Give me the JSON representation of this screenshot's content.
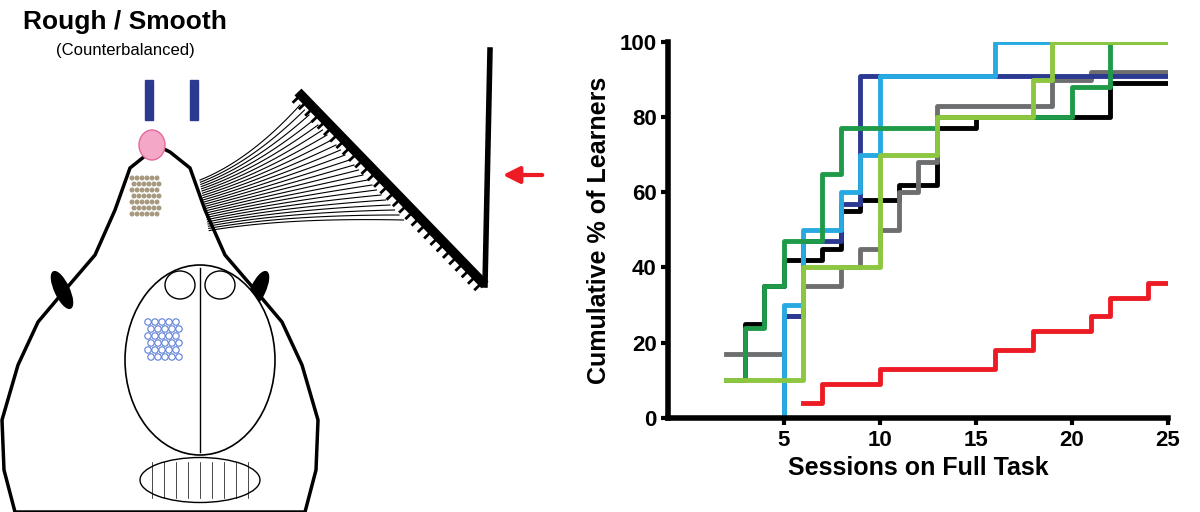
{
  "diagram": {
    "title": "Rough / Smooth",
    "subtitle": "(Counterbalanced)"
  },
  "chart_data": {
    "type": "step",
    "x_label": "Sessions on Full Task",
    "y_label": "Cumulative % of Learners",
    "xlim": [
      -1,
      25
    ],
    "xticks": [
      5,
      10,
      15,
      20,
      25
    ],
    "ylim": [
      0,
      100
    ],
    "yticks": [
      0,
      20,
      40,
      60,
      80,
      100
    ],
    "grid": false,
    "series": [
      {
        "color": "#000000",
        "x": [
          2,
          3,
          4,
          5,
          7,
          8,
          9,
          11,
          13,
          15,
          22,
          25
        ],
        "values": [
          10,
          25,
          35,
          42,
          45,
          55,
          58,
          62,
          77,
          80,
          89,
          89
        ]
      },
      {
        "color": "#6d6e70",
        "x": [
          2,
          5,
          6,
          8,
          9,
          10,
          11,
          12,
          13,
          19,
          21,
          25
        ],
        "values": [
          17,
          27,
          35,
          40,
          45,
          50,
          60,
          68,
          83,
          90,
          92,
          92
        ]
      },
      {
        "color": "#2b3990",
        "x": [
          4,
          5,
          6,
          8,
          9,
          25
        ],
        "values": [
          0,
          27,
          47,
          57,
          91,
          91
        ]
      },
      {
        "color": "#27aae1",
        "x": [
          4,
          5,
          6,
          8,
          9,
          10,
          16,
          25
        ],
        "values": [
          0,
          30,
          50,
          60,
          70,
          91,
          100,
          100
        ]
      },
      {
        "color": "#1f9a48",
        "x": [
          2,
          3,
          4,
          5,
          7,
          8,
          13,
          20,
          22,
          25
        ],
        "values": [
          10,
          24,
          35,
          47,
          65,
          77,
          80,
          88,
          100,
          100
        ]
      },
      {
        "color": "#8dc63f",
        "x": [
          2,
          6,
          10,
          13,
          18,
          19,
          25
        ],
        "values": [
          10,
          40,
          70,
          80,
          90,
          100,
          100
        ]
      },
      {
        "color": "#ed1c24",
        "x": [
          6,
          7,
          8,
          10,
          16,
          18,
          21,
          22,
          24,
          25
        ],
        "values": [
          4,
          9,
          9,
          13,
          18,
          23,
          27,
          32,
          36,
          36
        ]
      }
    ]
  }
}
